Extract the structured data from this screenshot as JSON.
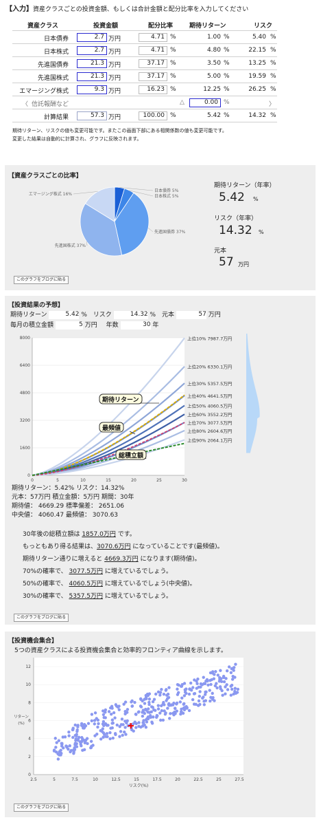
{
  "input": {
    "title": "【入力】",
    "subtitle": "資産クラスごとの投資金額、もしくは合計金額と配分比率を入力してください",
    "headers": [
      "資産クラス",
      "投資金額",
      "配分比率",
      "期待リターン",
      "リスク"
    ],
    "rows": [
      {
        "name": "日本債券",
        "amount": "2.7",
        "unit": "万円",
        "ratio": "4.71",
        "ratio_unit": "%",
        "ret": "1.00",
        "ret_unit": "%",
        "risk": "5.40",
        "risk_unit": "%"
      },
      {
        "name": "日本株式",
        "amount": "2.7",
        "unit": "万円",
        "ratio": "4.71",
        "ratio_unit": "%",
        "ret": "4.80",
        "ret_unit": "%",
        "risk": "22.15",
        "risk_unit": "%"
      },
      {
        "name": "先進国債券",
        "amount": "21.3",
        "unit": "万円",
        "ratio": "37.17",
        "ratio_unit": "%",
        "ret": "3.50",
        "ret_unit": "%",
        "risk": "13.25",
        "risk_unit": "%"
      },
      {
        "name": "先進国株式",
        "amount": "21.3",
        "unit": "万円",
        "ratio": "37.17",
        "ratio_unit": "%",
        "ret": "5.00",
        "ret_unit": "%",
        "risk": "19.59",
        "risk_unit": "%"
      },
      {
        "name": "エマージング株式",
        "amount": "9.3",
        "unit": "万円",
        "ratio": "16.23",
        "ratio_unit": "%",
        "ret": "12.25",
        "ret_unit": "%",
        "risk": "26.25",
        "risk_unit": "%"
      }
    ],
    "fee_row": {
      "left_arrow": "〈",
      "label": "信託報酬など",
      "delta": "△",
      "value": "0.00",
      "unit": "%",
      "right_arrow": "〉"
    },
    "total": {
      "label": "計算結果",
      "amount": "57.3",
      "unit": "万円",
      "ratio": "100.00",
      "ratio_unit": "%",
      "ret": "5.42",
      "ret_unit": "%",
      "risk": "14.32",
      "risk_unit": "%"
    },
    "note1": "期待リターン、リスクの値も変更可能です。またこの画面下部にある相関係数の値も変更可能です。",
    "note2": "変更した結果は自動的に計算され、グラフに反映されます。"
  },
  "ratio": {
    "title": "【資産クラスごとの比率】",
    "labels": [
      "日本債券 5%",
      "日本株式 5%",
      "先進国債券 37%",
      "先進国株式 37%",
      "エマージング株式 16%"
    ],
    "ret_label": "期待リターン（年率）",
    "ret_value": "5.42",
    "ret_unit": "%",
    "risk_label": "リスク（年率）",
    "risk_value": "14.32",
    "risk_unit": "%",
    "principal_label": "元本",
    "principal_value": "57",
    "principal_unit": "万円",
    "blog_button": "このグラフをブログに貼る",
    "chart_data": {
      "type": "pie",
      "categories": [
        "日本債券",
        "日本株式",
        "先進国債券",
        "先進国株式",
        "エマージング株式"
      ],
      "values": [
        4.71,
        4.71,
        37.17,
        37.17,
        16.23
      ],
      "colors": [
        "#1a5fd6",
        "#3d86e8",
        "#5f9ef0",
        "#8fb4ee",
        "#c8d8f4"
      ]
    }
  },
  "forecast": {
    "title": "【投資結果の予想】",
    "r1": {
      "ret_label": "期待リターン",
      "ret_value": "5.42",
      "ret_unit": "%",
      "risk_label": "リスク",
      "risk_value": "14.32",
      "risk_unit": "%",
      "principal_label": "元本",
      "principal_value": "57",
      "principal_unit": "万円"
    },
    "r2": {
      "monthly_label": "毎月の積立金額",
      "monthly_value": "5",
      "monthly_unit": "万円",
      "years_label": "年数",
      "years_value": "30",
      "years_unit": "年"
    },
    "yticks": [
      "8000",
      "6400",
      "4800",
      "3200",
      "1600",
      "0"
    ],
    "xticks": [
      "0",
      "5",
      "10",
      "15",
      "20",
      "25",
      "30"
    ],
    "pct_labels": [
      "上位10% 7987.7万円",
      "上位20% 6330.1万円",
      "上位30% 5357.5万円",
      "上位40% 4641.5万円",
      "上位50% 4060.5万円",
      "上位60% 3552.2万円",
      "上位70% 3077.5万円",
      "上位80% 2604.6万円",
      "上位90% 2064.1万円"
    ],
    "callouts": [
      "期待リターン",
      "最頻値",
      "総積立額"
    ],
    "stats": [
      "期待リターン：5.42%  リスク：14.32%",
      "元本：57万円  積立金額：5万円  期間：30年",
      "期待値： 4669.29  標準偏差： 2651.06",
      "中央値： 4060.47  最頻値： 3070.63"
    ],
    "sentences": [
      {
        "pre": "30年後の総積立額は ",
        "val": "1857.0万円",
        "post": " です。"
      },
      {
        "pre": "もっともあり得る結果は、",
        "val": "3070.6万円",
        "post": " になっていることです(最頻値)。"
      },
      {
        "pre": "期待リターン通りに増えると ",
        "val": "4669.3万円",
        "post": " になります(期待値)。"
      },
      {
        "pre": "70%の確率で、 ",
        "val": "3077.5万円",
        "post": " に増えているでしょう。"
      },
      {
        "pre": "50%の確率で、 ",
        "val": "4060.5万円",
        "post": " に増えているでしょう(中央値)。"
      },
      {
        "pre": "30%の確率で、 ",
        "val": "5357.5万円",
        "post": " に増えているでしょう。"
      }
    ],
    "blog_button": "このグラフをブログに貼る",
    "chart_data": {
      "type": "line",
      "x_range": [
        0,
        30
      ],
      "ylim": [
        0,
        8000
      ],
      "series": [
        {
          "name": "上位10%",
          "final": 7987.7
        },
        {
          "name": "上位20%",
          "final": 6330.1
        },
        {
          "name": "上位30%",
          "final": 5357.5
        },
        {
          "name": "上位40%",
          "final": 4641.5
        },
        {
          "name": "上位50%",
          "final": 4060.5
        },
        {
          "name": "上位60%",
          "final": 3552.2
        },
        {
          "name": "上位70%",
          "final": 3077.5
        },
        {
          "name": "上位80%",
          "final": 2604.6
        },
        {
          "name": "上位90%",
          "final": 2064.1
        },
        {
          "name": "期待リターン",
          "final": 4669.3
        },
        {
          "name": "最頻値",
          "final": 3070.6
        },
        {
          "name": "総積立額",
          "final": 1857.0
        }
      ]
    }
  },
  "frontier": {
    "title": "【投資機会集合】",
    "desc": "5つの資産クラスによる投資機会集合と効率的フロンティア曲線を示します。",
    "ylabel1": "リターン",
    "ylabel2": "(%)",
    "xlabel": "リスク(%)",
    "yticks": [
      "12",
      "10",
      "8",
      "6",
      "4",
      "2",
      "0"
    ],
    "xticks": [
      "2.5",
      "5",
      "7.5",
      "10",
      "12.5",
      "15",
      "17.5",
      "20",
      "22.5",
      "25",
      "27.5"
    ],
    "marker": {
      "x": 14.32,
      "y": 5.42
    },
    "blog_button": "このグラフをブログに貼る",
    "chart_data": {
      "type": "scatter",
      "xlim": [
        2.5,
        28
      ],
      "ylim": [
        0,
        13
      ],
      "point_count": 420,
      "lower_bound": {
        "x": [
          5,
          14,
          27
        ],
        "y": [
          1.5,
          4.5,
          9
        ]
      },
      "upper_bound": {
        "x": [
          5,
          10,
          27
        ],
        "y": [
          4,
          7,
          12.3
        ]
      }
    }
  }
}
